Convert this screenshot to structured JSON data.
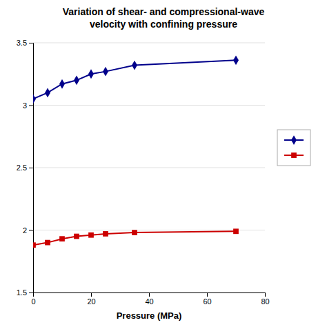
{
  "chart_data": {
    "type": "line",
    "title": "Variation of shear- and compressional-wave\nvelocity with confining pressure",
    "x_label": "Pressure (MPa)",
    "x": [
      0,
      5,
      10,
      15,
      20,
      25,
      35,
      70
    ],
    "series": [
      {
        "color": "#00008B",
        "marker": "diamond",
        "values": [
          3.05,
          3.1,
          3.17,
          3.2,
          3.25,
          3.27,
          3.32,
          3.36
        ]
      },
      {
        "color": "#CC0000",
        "marker": "square",
        "values": [
          1.88,
          1.9,
          1.93,
          1.95,
          1.96,
          1.97,
          1.98,
          1.99
        ]
      }
    ],
    "xlim": [
      0,
      80
    ],
    "xticks": [
      0,
      20,
      40,
      60,
      80
    ],
    "ylim": [
      1.5,
      3.5
    ],
    "yticks": [
      1.5,
      2,
      2.5,
      3,
      3.5
    ],
    "grid": "y",
    "legend": "right"
  }
}
